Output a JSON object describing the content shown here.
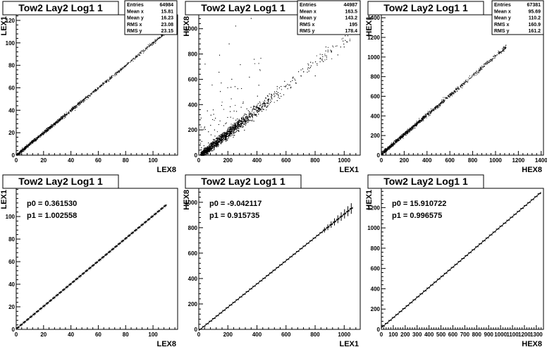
{
  "window": {
    "title": "Tow2 Lay2 Log1 1"
  },
  "chart_data": [
    {
      "type": "scatter",
      "title": "Tow2 Lay2 Log1 1",
      "xlabel": "LEX8",
      "ylabel": "LEX1",
      "xlim": [
        0,
        118
      ],
      "ylim": [
        0,
        125
      ],
      "xticks": [
        0,
        20,
        40,
        60,
        80,
        100
      ],
      "yticks": [
        0,
        20,
        40,
        60,
        80,
        100,
        120
      ],
      "trend": {
        "p0": 0.36,
        "p1": 1.0,
        "xmin": 0,
        "xmax": 110
      },
      "stats": [
        [
          "Entries",
          "64984"
        ],
        [
          "Mean x",
          "15.81"
        ],
        [
          "Mean y",
          "16.23"
        ],
        [
          "RMS x",
          "23.08"
        ],
        [
          "RMS y",
          "23.15"
        ]
      ]
    },
    {
      "type": "scatter",
      "title": "Tow2 Lay2 Log1 1",
      "xlabel": "LEX1",
      "ylabel": "HEX8",
      "xlim": [
        0,
        1110
      ],
      "ylim": [
        0,
        1110
      ],
      "xticks": [
        0,
        200,
        400,
        600,
        800,
        1000
      ],
      "yticks": [
        0,
        200,
        400,
        600,
        800,
        1000
      ],
      "trend": {
        "p0": -9.0,
        "p1": 0.92,
        "xmin": 0,
        "xmax": 1060
      },
      "stats": [
        [
          "Entries",
          "44987"
        ],
        [
          "Mean x",
          "163.5"
        ],
        [
          "Mean y",
          "143.2"
        ],
        [
          "RMS x",
          "195"
        ],
        [
          "RMS y",
          "178.4"
        ]
      ]
    },
    {
      "type": "scatter",
      "title": "Tow2 Lay2 Log1 1",
      "xlabel": "HEX8",
      "ylabel": "HEX1",
      "xlim": [
        0,
        1420
      ],
      "ylim": [
        0,
        1430
      ],
      "xticks": [
        0,
        200,
        400,
        600,
        800,
        1000,
        1200,
        1400
      ],
      "yticks": [
        0,
        200,
        400,
        600,
        800,
        1000,
        1200,
        1400
      ],
      "trend": {
        "p0": 15.9,
        "p1": 1.0,
        "xmin": 0,
        "xmax": 1090
      },
      "stats": [
        [
          "Entries",
          "67381"
        ],
        [
          "Mean x",
          "95.69"
        ],
        [
          "Mean y",
          "110.2"
        ],
        [
          "RMS x",
          "160.9"
        ],
        [
          "RMS y",
          "161.2"
        ]
      ]
    },
    {
      "type": "line",
      "title": "Tow2 Lay2 Log1 1",
      "xlabel": "LEX8",
      "ylabel": "LEX1",
      "xlim": [
        0,
        118
      ],
      "ylim": [
        0,
        125
      ],
      "xticks": [
        0,
        20,
        40,
        60,
        80,
        100
      ],
      "yticks": [
        0,
        20,
        40,
        60,
        80,
        100
      ],
      "fit": {
        "p0": 0.36153,
        "p1": 1.002558,
        "xmin": 0,
        "xmax": 110
      },
      "fit_text": [
        "p0 = 0.361530",
        "p1 = 1.002558"
      ]
    },
    {
      "type": "line",
      "title": "Tow2 Lay2 Log1 1",
      "xlabel": "LEX1",
      "ylabel": "HEX8",
      "xlim": [
        0,
        1110
      ],
      "ylim": [
        0,
        1110
      ],
      "xticks": [
        0,
        200,
        400,
        600,
        800,
        1000
      ],
      "yticks": [
        0,
        200,
        400,
        600,
        800,
        1000
      ],
      "fit": {
        "p0": -9.042117,
        "p1": 0.915735,
        "xmin": 0,
        "xmax": 1060
      },
      "fit_text": [
        "p0 = -9.042117",
        "p1 = 0.915735"
      ]
    },
    {
      "type": "line",
      "title": "Tow2 Lay2 Log1 1",
      "xlabel": "HEX8",
      "ylabel": "HEX1",
      "xlim": [
        0,
        1360
      ],
      "ylim": [
        0,
        1390
      ],
      "xticks": [
        0,
        100,
        200,
        300,
        400,
        500,
        600,
        700,
        800,
        900,
        1000,
        1100,
        1200,
        1300
      ],
      "yticks": [
        0,
        200,
        400,
        600,
        800,
        1000,
        1200
      ],
      "fit": {
        "p0": 15.910722,
        "p1": 0.996575,
        "xmin": 0,
        "xmax": 1340
      },
      "fit_text": [
        "p0 = 15.910722",
        "p1 = 0.996575"
      ]
    }
  ]
}
